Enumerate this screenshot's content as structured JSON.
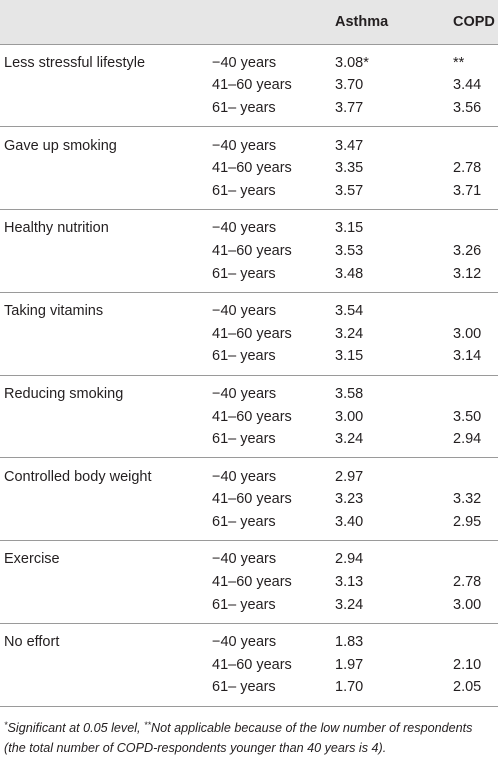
{
  "header": {
    "col_asthma": "Asthma",
    "col_copd": "COPD"
  },
  "groups": [
    {
      "label": "Less stressful lifestyle",
      "rows": [
        {
          "age": "−40 years",
          "asthma": "3.08*",
          "copd": "**"
        },
        {
          "age": "41–60 years",
          "asthma": "3.70",
          "copd": "3.44"
        },
        {
          "age": "61– years",
          "asthma": "3.77",
          "copd": "3.56"
        }
      ]
    },
    {
      "label": "Gave up smoking",
      "rows": [
        {
          "age": "−40 years",
          "asthma": "3.47",
          "copd": ""
        },
        {
          "age": "41–60 years",
          "asthma": "3.35",
          "copd": "2.78"
        },
        {
          "age": "61– years",
          "asthma": "3.57",
          "copd": "3.71"
        }
      ]
    },
    {
      "label": "Healthy nutrition",
      "rows": [
        {
          "age": "−40 years",
          "asthma": "3.15",
          "copd": ""
        },
        {
          "age": "41–60 years",
          "asthma": "3.53",
          "copd": "3.26"
        },
        {
          "age": "61– years",
          "asthma": "3.48",
          "copd": "3.12"
        }
      ]
    },
    {
      "label": "Taking vitamins",
      "rows": [
        {
          "age": "−40 years",
          "asthma": "3.54",
          "copd": ""
        },
        {
          "age": "41–60 years",
          "asthma": "3.24",
          "copd": "3.00"
        },
        {
          "age": "61– years",
          "asthma": "3.15",
          "copd": "3.14"
        }
      ]
    },
    {
      "label": "Reducing smoking",
      "rows": [
        {
          "age": "−40 years",
          "asthma": "3.58",
          "copd": ""
        },
        {
          "age": "41–60 years",
          "asthma": "3.00",
          "copd": "3.50"
        },
        {
          "age": "61– years",
          "asthma": "3.24",
          "copd": "2.94"
        }
      ]
    },
    {
      "label": "Controlled body weight",
      "rows": [
        {
          "age": "−40 years",
          "asthma": "2.97",
          "copd": ""
        },
        {
          "age": "41–60 years",
          "asthma": "3.23",
          "copd": "3.32"
        },
        {
          "age": "61– years",
          "asthma": "3.40",
          "copd": "2.95"
        }
      ]
    },
    {
      "label": "Exercise",
      "rows": [
        {
          "age": "−40 years",
          "asthma": "2.94",
          "copd": ""
        },
        {
          "age": "41–60 years",
          "asthma": "3.13",
          "copd": "2.78"
        },
        {
          "age": "61– years",
          "asthma": "3.24",
          "copd": "3.00"
        }
      ]
    },
    {
      "label": "No effort",
      "rows": [
        {
          "age": "−40 years",
          "asthma": "1.83",
          "copd": ""
        },
        {
          "age": "41–60 years",
          "asthma": "1.97",
          "copd": "2.10"
        },
        {
          "age": "61– years",
          "asthma": "1.70",
          "copd": "2.05"
        }
      ]
    }
  ],
  "footnote": {
    "mark1": "*",
    "text1": "Significant at 0.05 level, ",
    "mark2": "**",
    "text2": "Not applicable because of the low number of respondents (the total number of COPD-respondents younger than 40 years is 4)."
  }
}
